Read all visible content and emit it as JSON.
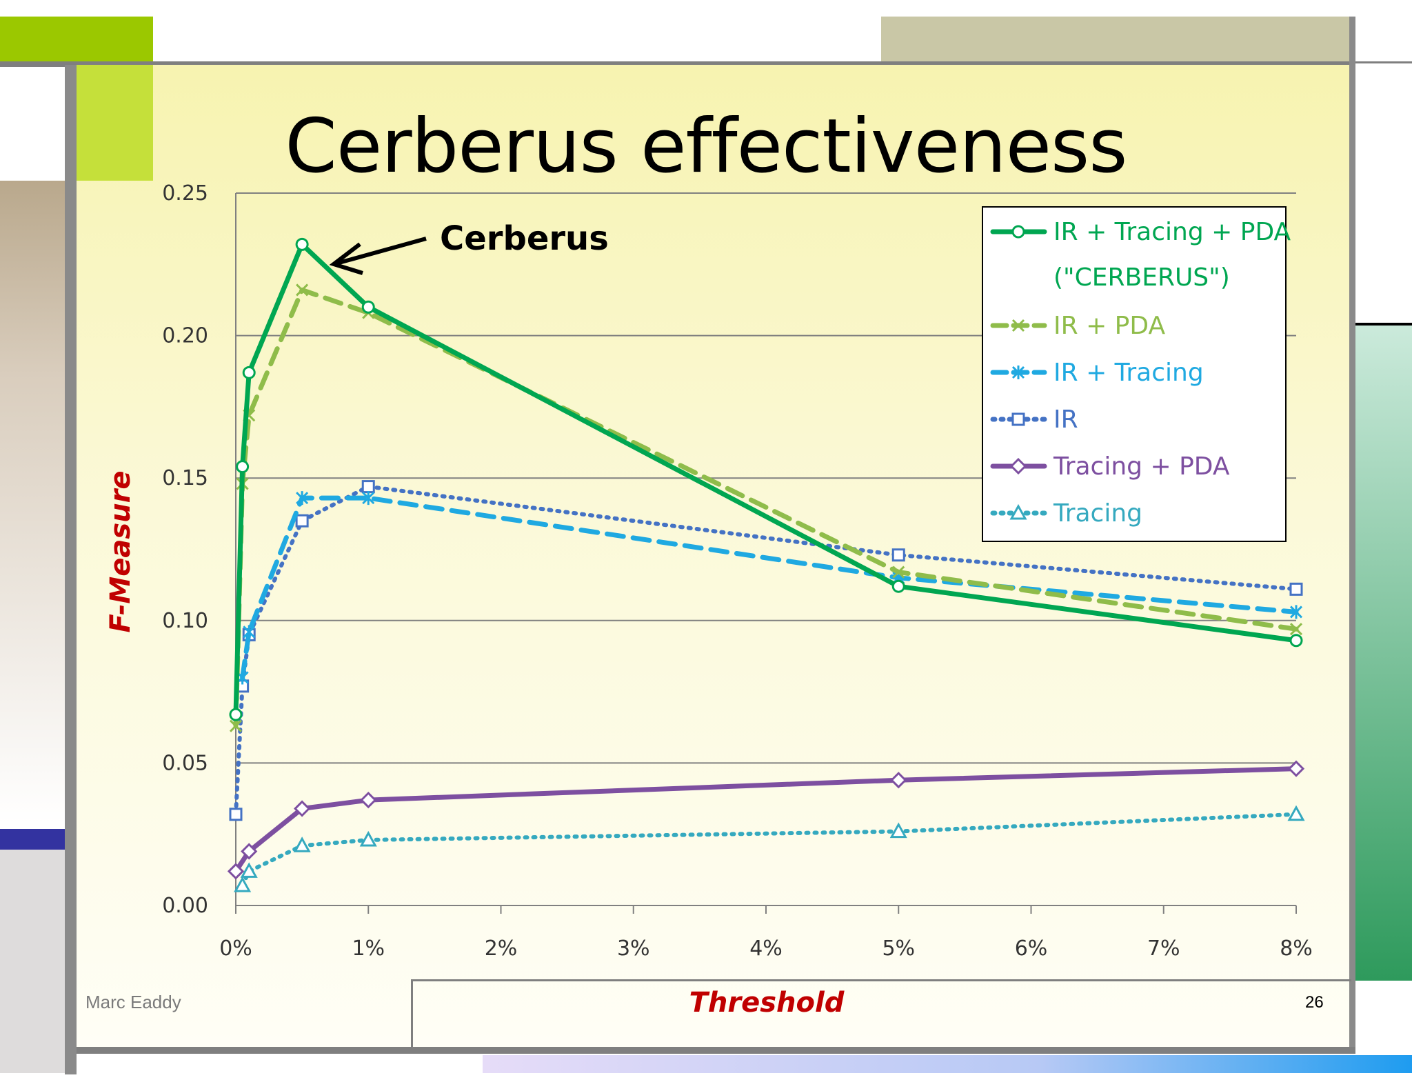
{
  "slide": {
    "title": "Cerberus effectiveness",
    "author": "Marc Eaddy",
    "page_number": "26",
    "accent_colors": {
      "lime": "#9bc800",
      "khaki": "#c9c7a6",
      "navy": "#3333a0",
      "green_gradient": "#2e9a5c"
    }
  },
  "chart_data": {
    "type": "line",
    "title": "",
    "xlabel": "Threshold",
    "ylabel": "F-Measure",
    "x_unit": "percent",
    "xlim": [
      0,
      8
    ],
    "ylim": [
      0,
      0.25
    ],
    "x_ticks": [
      "0%",
      "1%",
      "2%",
      "3%",
      "4%",
      "5%",
      "6%",
      "7%",
      "8%"
    ],
    "y_ticks": [
      "0.00",
      "0.05",
      "0.10",
      "0.15",
      "0.20",
      "0.25"
    ],
    "grid": true,
    "legend_position": "top-right",
    "annotation": {
      "text": "Cerberus",
      "points_to_series": 0,
      "points_to_x": 0.5
    },
    "series": [
      {
        "name": "IR + Tracing + PDA",
        "name_line2": "(\"CERBERUS\")",
        "color": "#00a651",
        "style": "solid",
        "marker": "circle",
        "points": [
          [
            0,
            0.067
          ],
          [
            0.05,
            0.154
          ],
          [
            0.1,
            0.187
          ],
          [
            0.5,
            0.232
          ],
          [
            1,
            0.21
          ],
          [
            5,
            0.112
          ],
          [
            8,
            0.093
          ]
        ]
      },
      {
        "name": "IR + PDA",
        "color": "#8fbc4a",
        "style": "dashed",
        "marker": "x",
        "points": [
          [
            0,
            0.063
          ],
          [
            0.05,
            0.148
          ],
          [
            0.1,
            0.172
          ],
          [
            0.5,
            0.216
          ],
          [
            1,
            0.208
          ],
          [
            5,
            0.117
          ],
          [
            8,
            0.097
          ]
        ]
      },
      {
        "name": "IR + Tracing",
        "color": "#1fa9e1",
        "style": "dashed",
        "marker": "star",
        "points": [
          [
            0.05,
            0.08
          ],
          [
            0.1,
            0.096
          ],
          [
            0.5,
            0.143
          ],
          [
            1,
            0.143
          ],
          [
            5,
            0.115
          ],
          [
            8,
            0.103
          ]
        ]
      },
      {
        "name": "IR",
        "color": "#4472c4",
        "style": "dotted",
        "marker": "square",
        "points": [
          [
            0,
            0.032
          ],
          [
            0.05,
            0.077
          ],
          [
            0.1,
            0.095
          ],
          [
            0.5,
            0.135
          ],
          [
            1,
            0.147
          ],
          [
            5,
            0.123
          ],
          [
            8,
            0.111
          ]
        ]
      },
      {
        "name": "Tracing + PDA",
        "color": "#7d4fa0",
        "style": "solid",
        "marker": "diamond",
        "points": [
          [
            0,
            0.012
          ],
          [
            0.1,
            0.019
          ],
          [
            0.5,
            0.034
          ],
          [
            1,
            0.037
          ],
          [
            5,
            0.044
          ],
          [
            8,
            0.048
          ]
        ]
      },
      {
        "name": "Tracing",
        "color": "#35a9bf",
        "style": "dotted",
        "marker": "triangle",
        "points": [
          [
            0.05,
            0.007
          ],
          [
            0.1,
            0.012
          ],
          [
            0.5,
            0.021
          ],
          [
            1,
            0.023
          ],
          [
            5,
            0.026
          ],
          [
            8,
            0.032
          ]
        ]
      }
    ]
  }
}
